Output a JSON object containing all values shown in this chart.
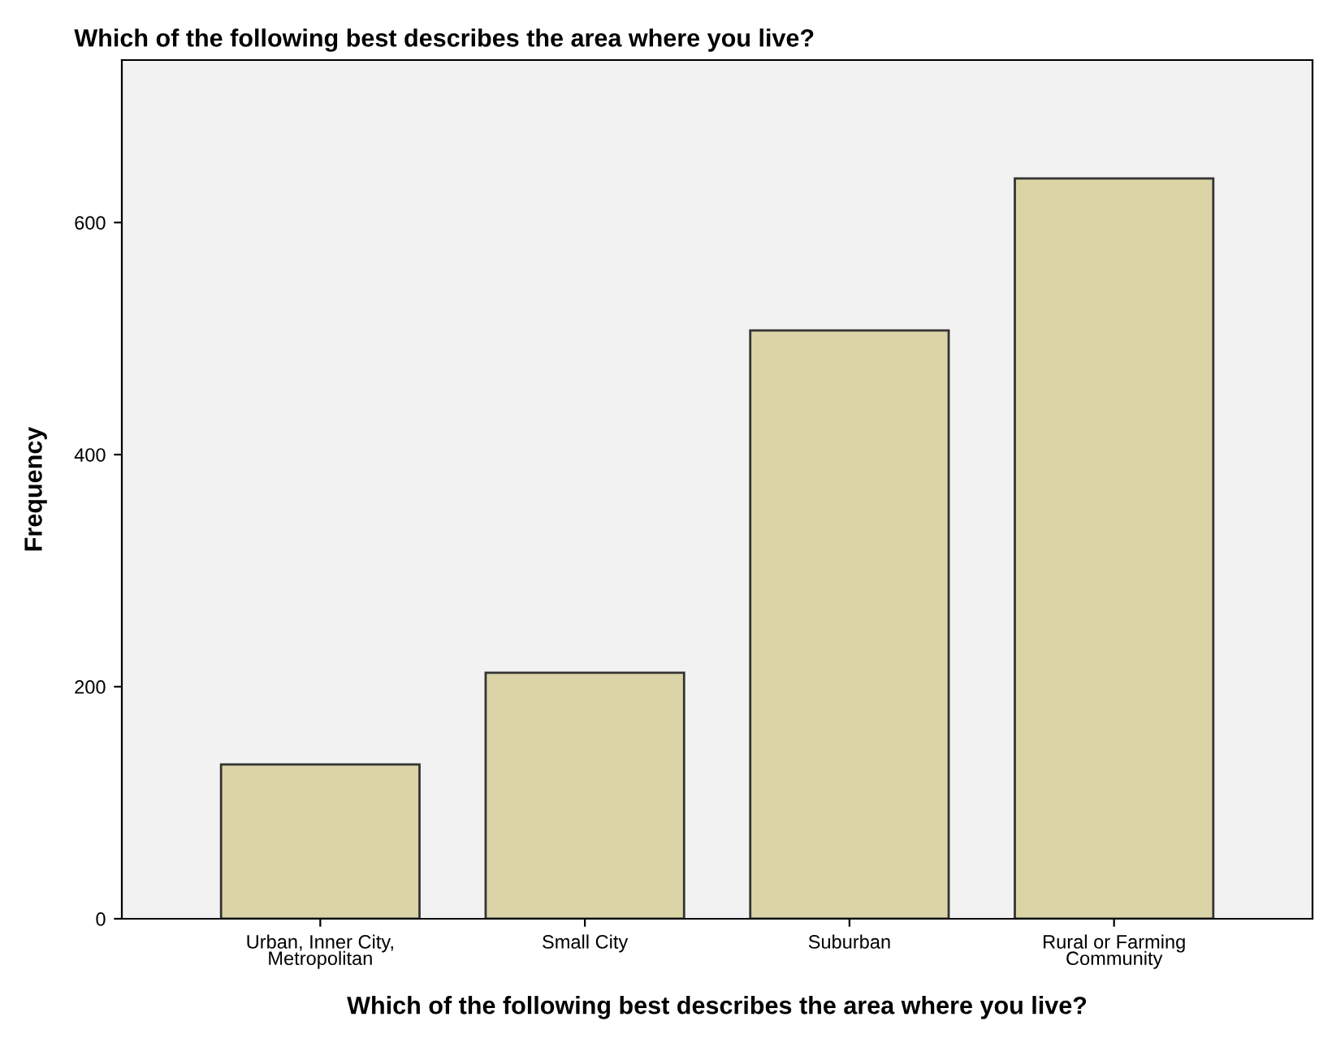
{
  "chart_data": {
    "type": "bar",
    "title": "Which of the following best describes the area where you live?",
    "xlabel": "Which of the following best describes the area where you live?",
    "ylabel": "Frequency",
    "categories": [
      "Urban, Inner City,\nMetropolitan",
      "Small City",
      "Suburban",
      "Rural or Farming\nCommunity"
    ],
    "values": [
      133,
      212,
      507,
      638
    ],
    "color": "#dbd4a6",
    "ylim": [
      0,
      740
    ],
    "yticks": [
      0,
      200,
      400,
      600
    ],
    "grid": false
  }
}
